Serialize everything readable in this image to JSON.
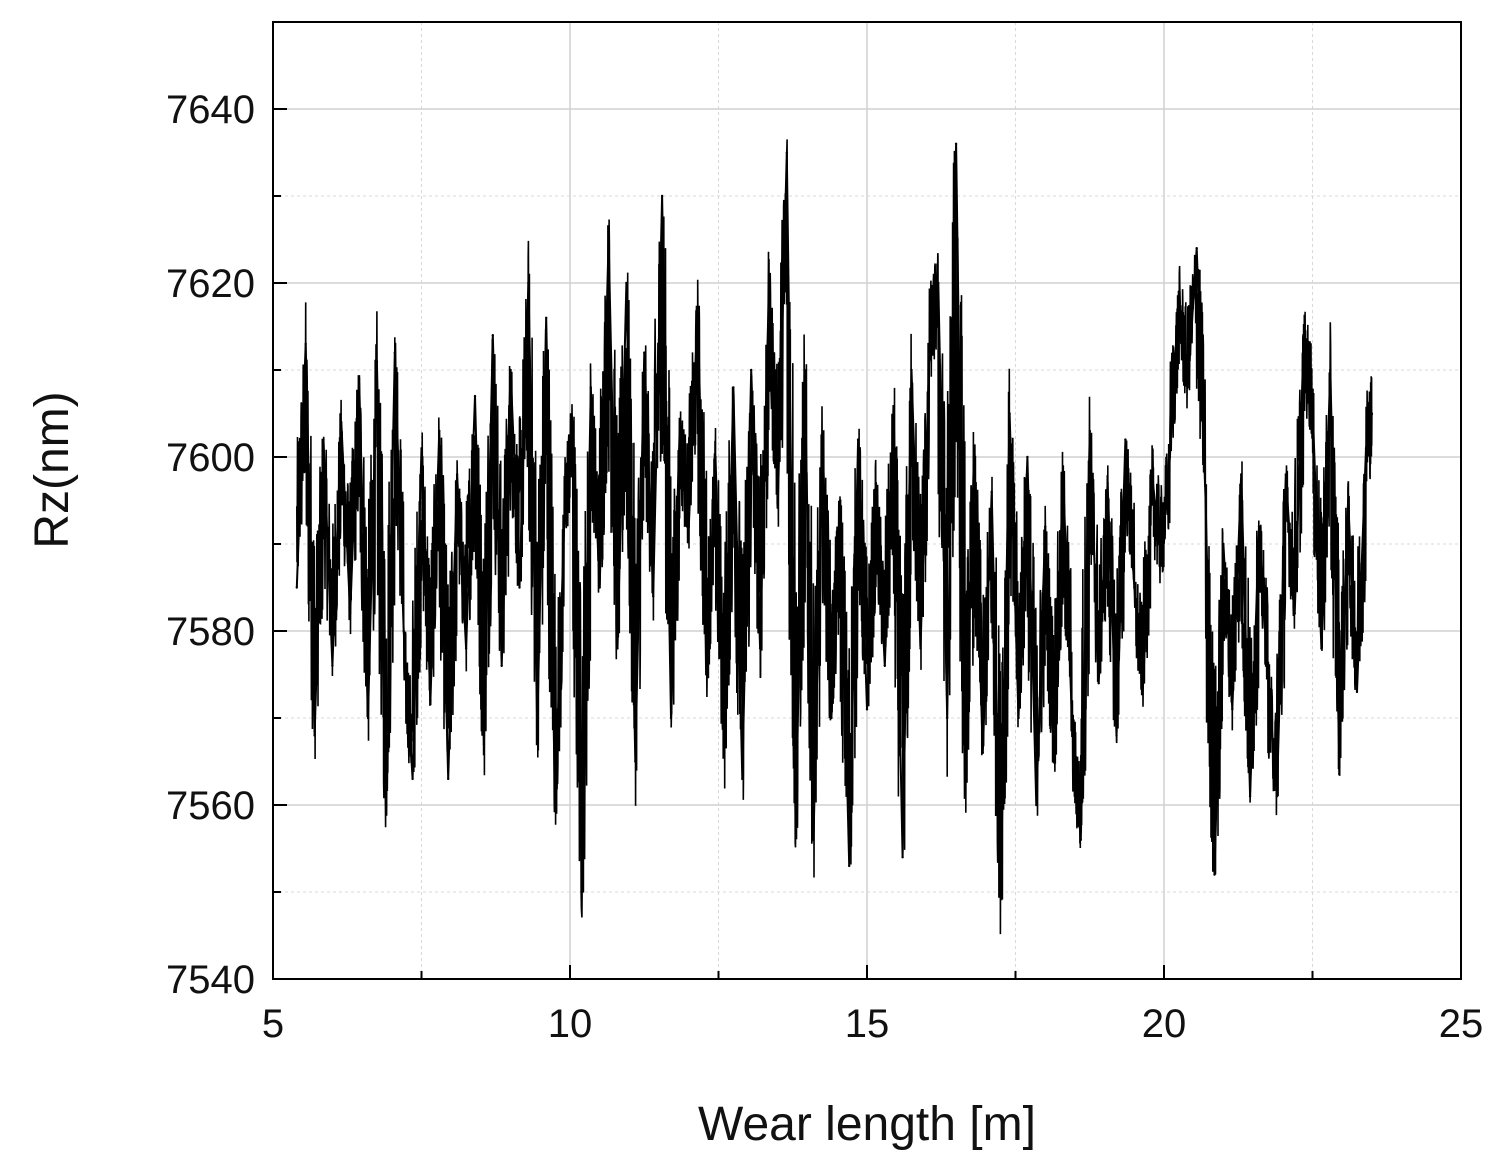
{
  "chart_data": {
    "type": "line",
    "title": "",
    "xlabel": "Wear length [m]",
    "ylabel": "Rz(nm)",
    "xlim": [
      5,
      25
    ],
    "ylim": [
      7540,
      7650
    ],
    "x_ticks": [
      5,
      10,
      15,
      20,
      25
    ],
    "x_minor_ticks": [
      7.5,
      12.5,
      17.5,
      22.5
    ],
    "y_ticks": [
      7540,
      7560,
      7580,
      7600,
      7620,
      7640
    ],
    "y_minor_ticks": [
      7550,
      7570,
      7590,
      7610,
      7630
    ],
    "grid": true,
    "legend": "none",
    "line_color": "#000000",
    "x_range": [
      5.4,
      23.5
    ],
    "series": [
      {
        "name": "",
        "x": [
          5.4,
          5.55,
          5.7,
          5.85,
          6.0,
          6.15,
          6.3,
          6.45,
          6.6,
          6.75,
          6.9,
          7.05,
          7.2,
          7.35,
          7.5,
          7.65,
          7.8,
          7.95,
          8.1,
          8.25,
          8.4,
          8.55,
          8.7,
          8.85,
          9.0,
          9.15,
          9.3,
          9.45,
          9.6,
          9.75,
          9.9,
          10.05,
          10.2,
          10.35,
          10.5,
          10.65,
          10.8,
          10.95,
          11.1,
          11.25,
          11.4,
          11.55,
          11.7,
          11.85,
          12.0,
          12.15,
          12.3,
          12.45,
          12.6,
          12.75,
          12.9,
          13.05,
          13.2,
          13.35,
          13.5,
          13.65,
          13.8,
          13.95,
          14.1,
          14.25,
          14.4,
          14.55,
          14.7,
          14.85,
          15.0,
          15.15,
          15.3,
          15.45,
          15.6,
          15.75,
          15.9,
          16.05,
          16.2,
          16.35,
          16.5,
          16.65,
          16.8,
          16.95,
          17.1,
          17.25,
          17.4,
          17.55,
          17.7,
          17.85,
          18.0,
          18.15,
          18.3,
          18.45,
          18.6,
          18.75,
          18.9,
          19.05,
          19.2,
          19.35,
          19.5,
          19.65,
          19.8,
          19.95,
          20.1,
          20.25,
          20.4,
          20.55,
          20.7,
          20.85,
          21.0,
          21.15,
          21.3,
          21.45,
          21.6,
          21.75,
          21.9,
          22.05,
          22.2,
          22.35,
          22.5,
          22.65,
          22.8,
          22.95,
          23.1,
          23.25,
          23.4,
          23.5
        ],
        "values": [
          7585,
          7613,
          7568,
          7602,
          7576,
          7604,
          7582,
          7609,
          7570,
          7611,
          7560,
          7612,
          7580,
          7563,
          7601,
          7572,
          7603,
          7563,
          7598,
          7578,
          7607,
          7567,
          7614,
          7576,
          7610,
          7585,
          7620,
          7569,
          7616,
          7560,
          7592,
          7604,
          7551,
          7608,
          7585,
          7625,
          7578,
          7620,
          7565,
          7612,
          7584,
          7630,
          7570,
          7604,
          7592,
          7617,
          7575,
          7600,
          7566,
          7608,
          7563,
          7610,
          7578,
          7620,
          7595,
          7635,
          7557,
          7610,
          7556,
          7602,
          7570,
          7595,
          7553,
          7602,
          7571,
          7597,
          7576,
          7605,
          7554,
          7610,
          7578,
          7612,
          7620,
          7570,
          7636,
          7562,
          7600,
          7566,
          7596,
          7550,
          7605,
          7570,
          7600,
          7560,
          7592,
          7565,
          7598,
          7570,
          7556,
          7603,
          7574,
          7597,
          7568,
          7602,
          7585,
          7574,
          7598,
          7588,
          7600,
          7619,
          7608,
          7624,
          7595,
          7552,
          7590,
          7571,
          7598,
          7561,
          7592,
          7575,
          7561,
          7598,
          7582,
          7613,
          7606,
          7578,
          7610,
          7566,
          7595,
          7573,
          7601,
          7605
        ]
      }
    ]
  }
}
